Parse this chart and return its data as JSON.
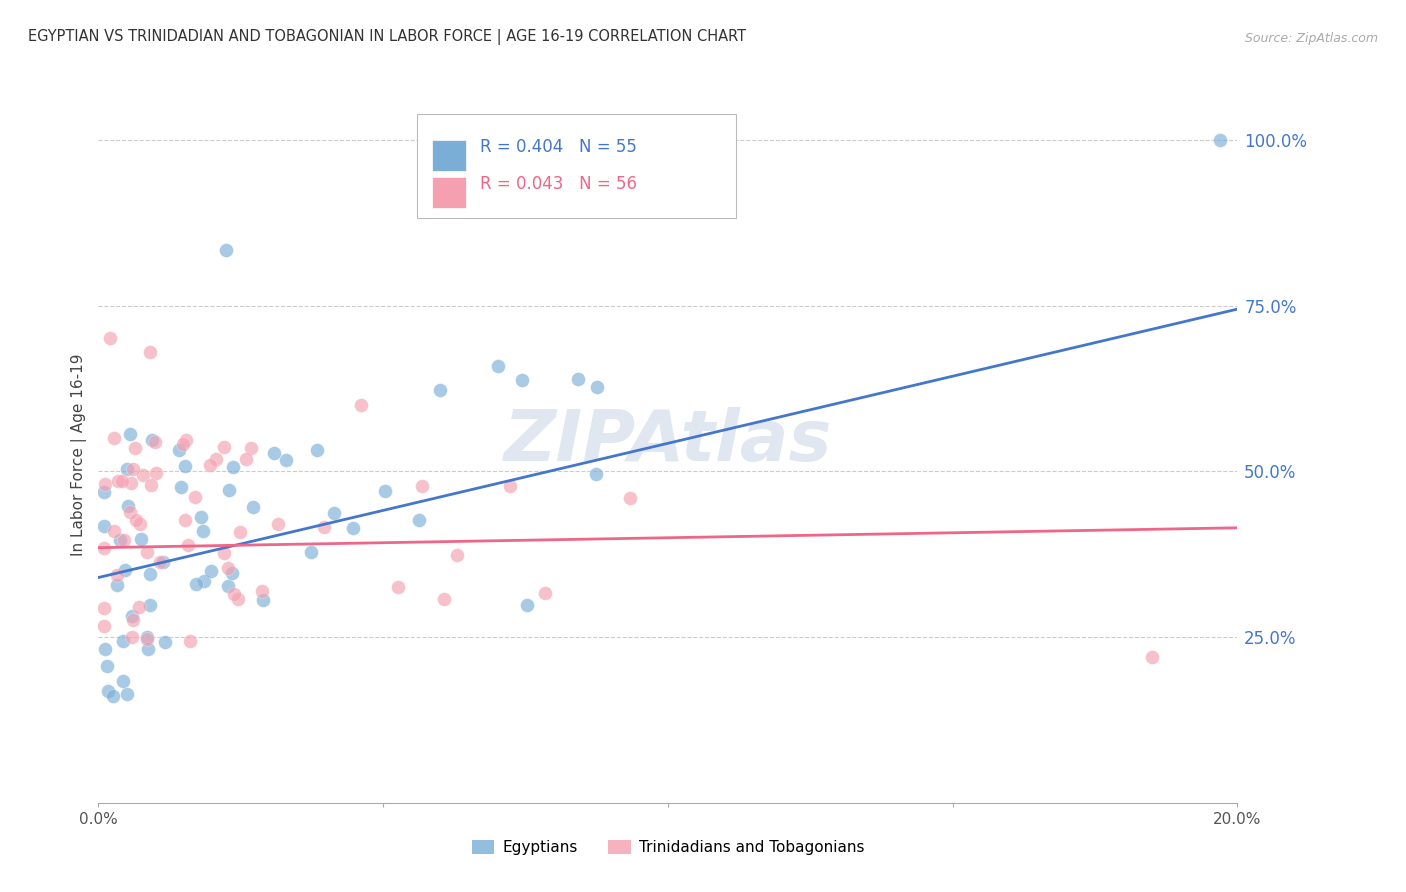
{
  "title": "EGYPTIAN VS TRINIDADIAN AND TOBAGONIAN IN LABOR FORCE | AGE 16-19 CORRELATION CHART",
  "source": "Source: ZipAtlas.com",
  "ylabel": "In Labor Force | Age 16-19",
  "xlim": [
    0.0,
    0.2
  ],
  "ylim": [
    0.0,
    1.05
  ],
  "yticks": [
    0.25,
    0.5,
    0.75,
    1.0
  ],
  "yticklabels": [
    "25.0%",
    "50.0%",
    "75.0%",
    "100.0%"
  ],
  "grid_color": "#cccccc",
  "blue_color": "#7aaed6",
  "pink_color": "#f4a0b0",
  "blue_line_color": "#4477cc",
  "pink_line_color": "#ee6688",
  "legend_R1": "R = 0.404",
  "legend_N1": "N = 55",
  "legend_R2": "R = 0.043",
  "legend_N2": "N = 56",
  "watermark": "ZIPAtlas",
  "blue_line_x": [
    0.0,
    0.2
  ],
  "blue_line_y": [
    0.34,
    0.745
  ],
  "pink_line_x": [
    0.0,
    0.2
  ],
  "pink_line_y": [
    0.385,
    0.415
  ]
}
